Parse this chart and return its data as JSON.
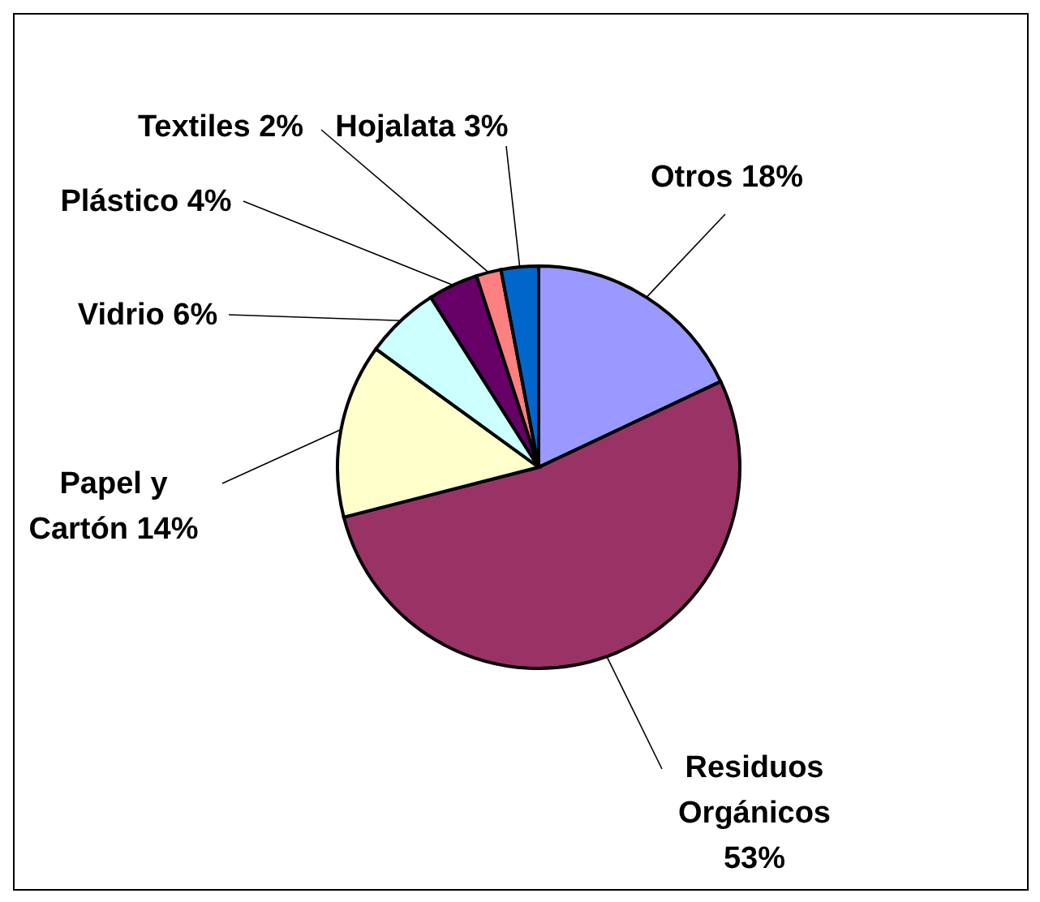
{
  "chart_data": {
    "type": "pie",
    "categories": [
      "Otros",
      "Residuos Orgánicos",
      "Papel y Cartón",
      "Vidrio",
      "Plástico",
      "Textiles",
      "Hojalata"
    ],
    "values": [
      18,
      53,
      14,
      6,
      4,
      2,
      3
    ],
    "value_labels": [
      "18%",
      "53%",
      "14%",
      "6%",
      "4%",
      "2%",
      "3%"
    ],
    "colors": [
      "#9999ff",
      "#993366",
      "#ffffcc",
      "#ccffff",
      "#660066",
      "#ff8080",
      "#0066cc"
    ]
  }
}
